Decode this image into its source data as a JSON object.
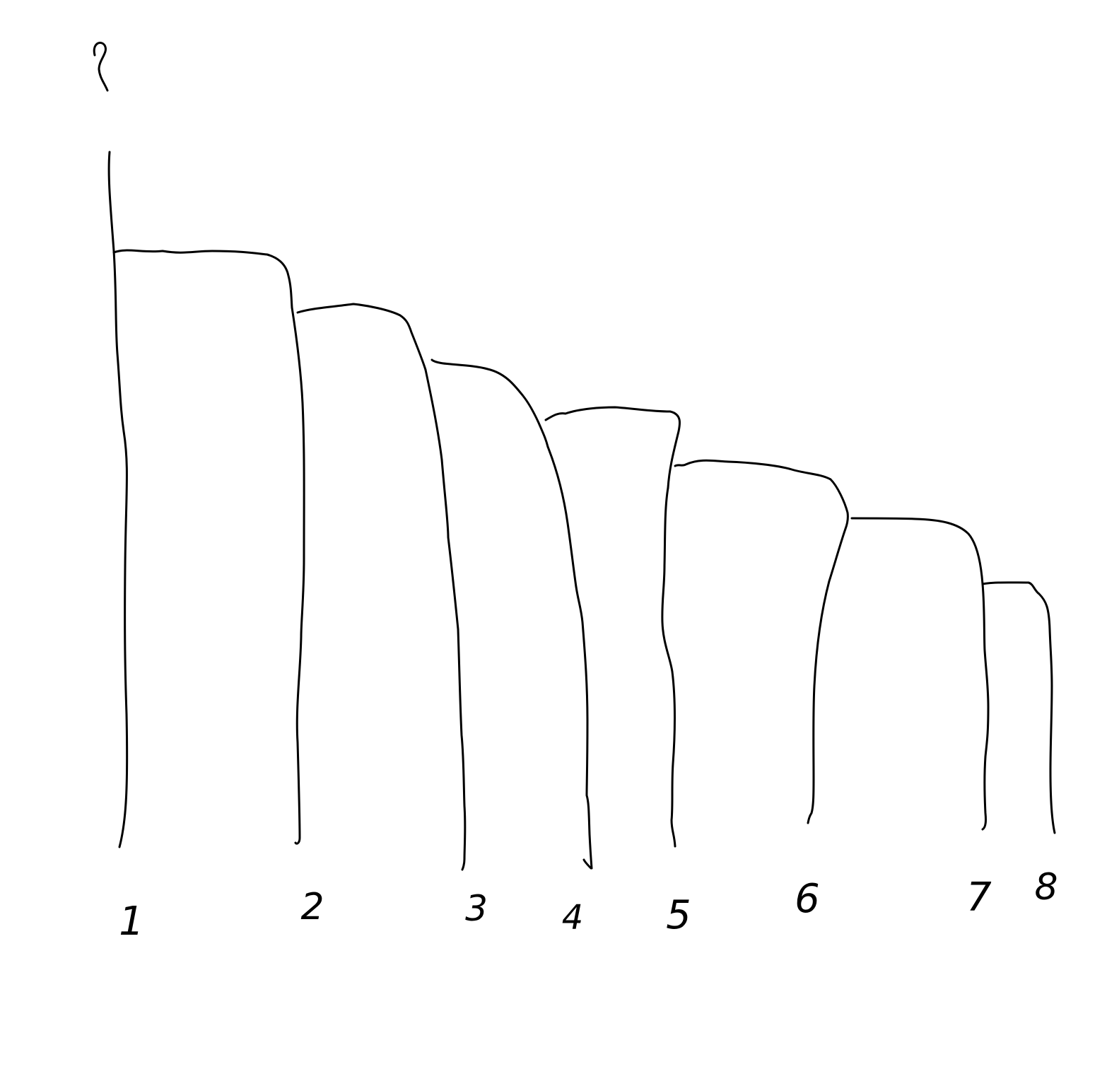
{
  "root_label": "?",
  "leaves": [
    {
      "label": "1"
    },
    {
      "label": "2"
    },
    {
      "label": "3"
    },
    {
      "label": "4"
    },
    {
      "label": "5"
    },
    {
      "label": "6"
    },
    {
      "label": "7"
    },
    {
      "label": "8"
    }
  ],
  "ink_color": "#000000",
  "background_color": "#ffffff"
}
